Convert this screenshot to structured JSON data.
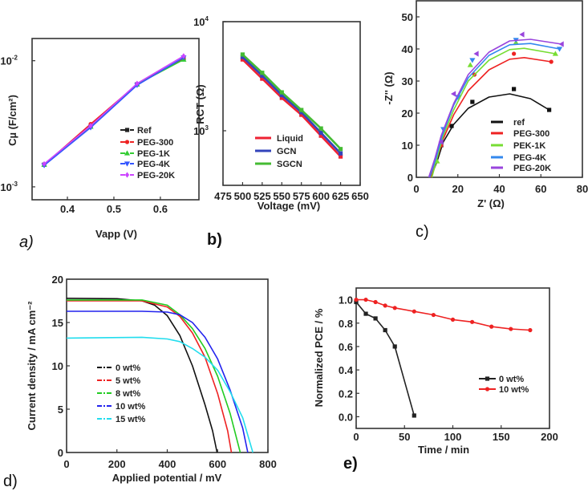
{
  "chart_data": [
    {
      "panel_label": "a)",
      "type": "line",
      "scale_y": "log",
      "xlabel": "Vapp (V)",
      "ylabel": "Cµ (F/cm²)",
      "xlim": [
        0.324,
        0.683
      ],
      "ylim": [
        0.00079,
        0.015
      ],
      "x_ticks": [
        {
          "v": 0.4,
          "label": "0.4"
        },
        {
          "v": 0.5,
          "label": "0.5"
        },
        {
          "v": 0.6,
          "label": "0.6"
        }
      ],
      "y_ticks": [
        {
          "v": 0.001,
          "label": "10",
          "exp": "-3"
        },
        {
          "v": 0.01,
          "label": "10",
          "exp": "-2"
        }
      ],
      "x": [
        0.35,
        0.45,
        0.55,
        0.65
      ],
      "series": [
        {
          "name": "Ref",
          "color": "#222222",
          "marker": "square",
          "values": [
            0.0015,
            0.003,
            0.0065,
            0.0103
          ]
        },
        {
          "name": "PEG-300",
          "color": "#ee2222",
          "marker": "circle",
          "values": [
            0.0015,
            0.00315,
            0.0065,
            0.0105
          ]
        },
        {
          "name": "PEG-1K",
          "color": "#33cc33",
          "marker": "triangle",
          "values": [
            0.0015,
            0.003,
            0.0065,
            0.0102
          ]
        },
        {
          "name": "PEG-4K",
          "color": "#3355ff",
          "marker": "triangle-down",
          "values": [
            0.00148,
            0.00295,
            0.0064,
            0.0106
          ]
        },
        {
          "name": "PEG-20K",
          "color": "#cc44ff",
          "marker": "diamond",
          "values": [
            0.00152,
            0.00305,
            0.0066,
            0.0109
          ]
        }
      ]
    },
    {
      "panel_label": "b)",
      "type": "line",
      "scale_y": "log",
      "xlabel": "Voltage (mV)",
      "ylabel": "RCT (Ω)",
      "xlim": [
        475,
        650
      ],
      "ylim": [
        316,
        10000
      ],
      "x_ticks": [
        {
          "v": 475,
          "label": "475"
        },
        {
          "v": 500,
          "label": "500"
        },
        {
          "v": 525,
          "label": "525"
        },
        {
          "v": 550,
          "label": "550"
        },
        {
          "v": 575,
          "label": "575"
        },
        {
          "v": 600,
          "label": "600"
        },
        {
          "v": 625,
          "label": "625"
        },
        {
          "v": 650,
          "label": "650"
        }
      ],
      "y_ticks": [
        {
          "v": 1000,
          "label": "10",
          "exp": "3"
        },
        {
          "v": 10000,
          "label": "10",
          "exp": "4"
        }
      ],
      "x": [
        500,
        525,
        550,
        575,
        600,
        625
      ],
      "series": [
        {
          "name": "Liquid",
          "color": "#ee2233",
          "marker": "square",
          "values": [
            4500,
            3000,
            2000,
            1400,
            900,
            580
          ]
        },
        {
          "name": "GCN",
          "color": "#3344bb",
          "marker": "square",
          "values": [
            4750,
            3200,
            2120,
            1480,
            960,
            620
          ]
        },
        {
          "name": "SGCN",
          "color": "#44bb33",
          "marker": "square",
          "values": [
            5000,
            3400,
            2250,
            1550,
            1050,
            680
          ]
        }
      ]
    },
    {
      "panel_label": "c)",
      "type": "scatter",
      "scale_y": "linear",
      "xlabel": "Z' (Ω)",
      "ylabel": "-Z'' (Ω)",
      "xlim": [
        0,
        80
      ],
      "ylim": [
        0,
        55
      ],
      "x_ticks": [
        {
          "v": 0,
          "label": "0"
        },
        {
          "v": 20,
          "label": "20"
        },
        {
          "v": 40,
          "label": "40"
        },
        {
          "v": 60,
          "label": "60"
        },
        {
          "v": 80,
          "label": "80"
        }
      ],
      "y_ticks": [
        {
          "v": 0,
          "label": "0"
        },
        {
          "v": 10,
          "label": "10"
        },
        {
          "v": 20,
          "label": "20"
        },
        {
          "v": 30,
          "label": "30"
        },
        {
          "v": 40,
          "label": "40"
        },
        {
          "v": 50,
          "label": "50"
        }
      ],
      "series": [
        {
          "name": "ref",
          "color": "#111111",
          "marker": "square",
          "points": [
            [
              12,
              10
            ],
            [
              17,
              16
            ],
            [
              27,
              23.5
            ],
            [
              47,
              27.5
            ],
            [
              64,
              21
            ]
          ],
          "fit": [
            [
              7,
              0
            ],
            [
              10,
              5
            ],
            [
              13,
              11
            ],
            [
              18,
              16.5
            ],
            [
              25,
              21.5
            ],
            [
              35,
              25
            ],
            [
              45,
              26
            ],
            [
              55,
              24.5
            ],
            [
              64,
              21
            ]
          ]
        },
        {
          "name": "PEG-300",
          "color": "#ee2222",
          "marker": "circle",
          "points": [
            [
              12,
              10
            ],
            [
              28,
              32
            ],
            [
              47,
              38.5
            ],
            [
              65,
              36
            ]
          ],
          "fit": [
            [
              7,
              0
            ],
            [
              10,
              6
            ],
            [
              13,
              12
            ],
            [
              18,
              19.5
            ],
            [
              25,
              27
            ],
            [
              35,
              33.5
            ],
            [
              45,
              36.8
            ],
            [
              52,
              37.3
            ],
            [
              65,
              36
            ]
          ]
        },
        {
          "name": "PEK-1K",
          "color": "#77dd33",
          "marker": "triangle",
          "points": [
            [
              10,
              5
            ],
            [
              26,
              35
            ],
            [
              48,
              42
            ],
            [
              67,
              38.5
            ]
          ],
          "fit": [
            [
              7.5,
              0
            ],
            [
              10,
              6
            ],
            [
              13,
              13
            ],
            [
              18,
              21
            ],
            [
              25,
              30
            ],
            [
              35,
              36.5
            ],
            [
              45,
              39.8
            ],
            [
              52,
              40.2
            ],
            [
              67,
              38.5
            ]
          ]
        },
        {
          "name": "PEG-4K",
          "color": "#3388ee",
          "marker": "triangle-down",
          "points": [
            [
              13,
              15
            ],
            [
              20,
              25
            ],
            [
              27,
              36.5
            ],
            [
              48,
              42.8
            ],
            [
              69,
              40
            ]
          ],
          "fit": [
            [
              6.5,
              0
            ],
            [
              9.5,
              6
            ],
            [
              12.5,
              13
            ],
            [
              18,
              22.5
            ],
            [
              25,
              31
            ],
            [
              35,
              38
            ],
            [
              45,
              41.3
            ],
            [
              55,
              41.7
            ],
            [
              69,
              40
            ]
          ]
        },
        {
          "name": "PEG-20K",
          "color": "#9944dd",
          "marker": "triangle-left",
          "points": [
            [
              12,
              11
            ],
            [
              18,
              26
            ],
            [
              29,
              38.5
            ],
            [
              51,
              44.5
            ],
            [
              70,
              41.5
            ]
          ],
          "fit": [
            [
              6,
              0
            ],
            [
              9,
              6
            ],
            [
              12,
              13
            ],
            [
              18,
              23
            ],
            [
              25,
              32
            ],
            [
              35,
              39
            ],
            [
              45,
              42.5
            ],
            [
              55,
              43
            ],
            [
              70,
              41.5
            ]
          ]
        }
      ]
    },
    {
      "panel_label": "d)",
      "type": "line",
      "scale_y": "linear",
      "xlabel": "Applied potential / mV",
      "ylabel": "Current density / mA cm⁻²",
      "xlim": [
        0,
        800
      ],
      "ylim": [
        0,
        20
      ],
      "x_ticks": [
        {
          "v": 0,
          "label": "0"
        },
        {
          "v": 200,
          "label": "200"
        },
        {
          "v": 400,
          "label": "400"
        },
        {
          "v": 600,
          "label": "600"
        },
        {
          "v": 800,
          "label": "800"
        }
      ],
      "y_ticks": [
        {
          "v": 0,
          "label": "0"
        },
        {
          "v": 5,
          "label": "5"
        },
        {
          "v": 10,
          "label": "10"
        },
        {
          "v": 15,
          "label": "15"
        },
        {
          "v": 20,
          "label": "20"
        }
      ],
      "series": [
        {
          "name": "0 wt%",
          "color": "#111111",
          "points": [
            [
              0,
              17.8
            ],
            [
              200,
              17.75
            ],
            [
              300,
              17.5
            ],
            [
              350,
              17
            ],
            [
              400,
              15.8
            ],
            [
              450,
              13.5
            ],
            [
              500,
              10
            ],
            [
              550,
              5.5
            ],
            [
              580,
              2.5
            ],
            [
              598,
              0
            ]
          ]
        },
        {
          "name": "5 wt%",
          "color": "#ee2222",
          "points": [
            [
              0,
              17.5
            ],
            [
              300,
              17.5
            ],
            [
              400,
              16.8
            ],
            [
              450,
              15.7
            ],
            [
              500,
              13.8
            ],
            [
              550,
              11
            ],
            [
              600,
              6.8
            ],
            [
              640,
              2.5
            ],
            [
              655,
              0
            ]
          ]
        },
        {
          "name": "8 wt%",
          "color": "#22cc22",
          "points": [
            [
              0,
              17.6
            ],
            [
              300,
              17.6
            ],
            [
              400,
              17
            ],
            [
              450,
              15.9
            ],
            [
              500,
              14.3
            ],
            [
              550,
              12
            ],
            [
              600,
              8.8
            ],
            [
              650,
              4.5
            ],
            [
              690,
              0
            ]
          ]
        },
        {
          "name": "10 wt%",
          "color": "#2222ee",
          "points": [
            [
              0,
              16.3
            ],
            [
              300,
              16.3
            ],
            [
              400,
              16.2
            ],
            [
              450,
              15.9
            ],
            [
              500,
              15
            ],
            [
              550,
              13.3
            ],
            [
              600,
              10.8
            ],
            [
              650,
              7.2
            ],
            [
              700,
              2.8
            ],
            [
              720,
              0
            ]
          ]
        },
        {
          "name": "15 wt%",
          "color": "#22ddee",
          "points": [
            [
              0,
              13.2
            ],
            [
              300,
              13.3
            ],
            [
              400,
              13.1
            ],
            [
              450,
              12.8
            ],
            [
              500,
              12
            ],
            [
              550,
              11
            ],
            [
              600,
              9.5
            ],
            [
              650,
              7
            ],
            [
              700,
              4
            ],
            [
              740,
              0
            ]
          ]
        }
      ]
    },
    {
      "panel_label": "e)",
      "type": "line",
      "scale_y": "linear",
      "xlabel": "Time / min",
      "ylabel": "Normalized PCE / %",
      "xlim": [
        0,
        200
      ],
      "ylim": [
        -0.1,
        1.1
      ],
      "x_ticks": [
        {
          "v": 0,
          "label": "0"
        },
        {
          "v": 50,
          "label": "50"
        },
        {
          "v": 100,
          "label": "100"
        },
        {
          "v": 150,
          "label": "150"
        },
        {
          "v": 200,
          "label": "200"
        }
      ],
      "y_ticks": [
        {
          "v": 0,
          "label": "0.0"
        },
        {
          "v": 0.2,
          "label": "0.2"
        },
        {
          "v": 0.4,
          "label": "0.4"
        },
        {
          "v": 0.6,
          "label": "0.6"
        },
        {
          "v": 0.8,
          "label": "0.8"
        },
        {
          "v": 1.0,
          "label": "1.0"
        }
      ],
      "series": [
        {
          "name": "0 wt%",
          "color": "#222222",
          "marker": "square",
          "points": [
            [
              0,
              0.98
            ],
            [
              10,
              0.88
            ],
            [
              20,
              0.84
            ],
            [
              30,
              0.74
            ],
            [
              40,
              0.6
            ],
            [
              60,
              0.01
            ]
          ]
        },
        {
          "name": "10 wt%",
          "color": "#ee2222",
          "marker": "circle",
          "points": [
            [
              0,
              1.0
            ],
            [
              10,
              1.0
            ],
            [
              20,
              0.98
            ],
            [
              30,
              0.95
            ],
            [
              40,
              0.93
            ],
            [
              60,
              0.9
            ],
            [
              80,
              0.87
            ],
            [
              100,
              0.83
            ],
            [
              120,
              0.81
            ],
            [
              140,
              0.77
            ],
            [
              160,
              0.75
            ],
            [
              180,
              0.74
            ]
          ]
        }
      ]
    }
  ]
}
